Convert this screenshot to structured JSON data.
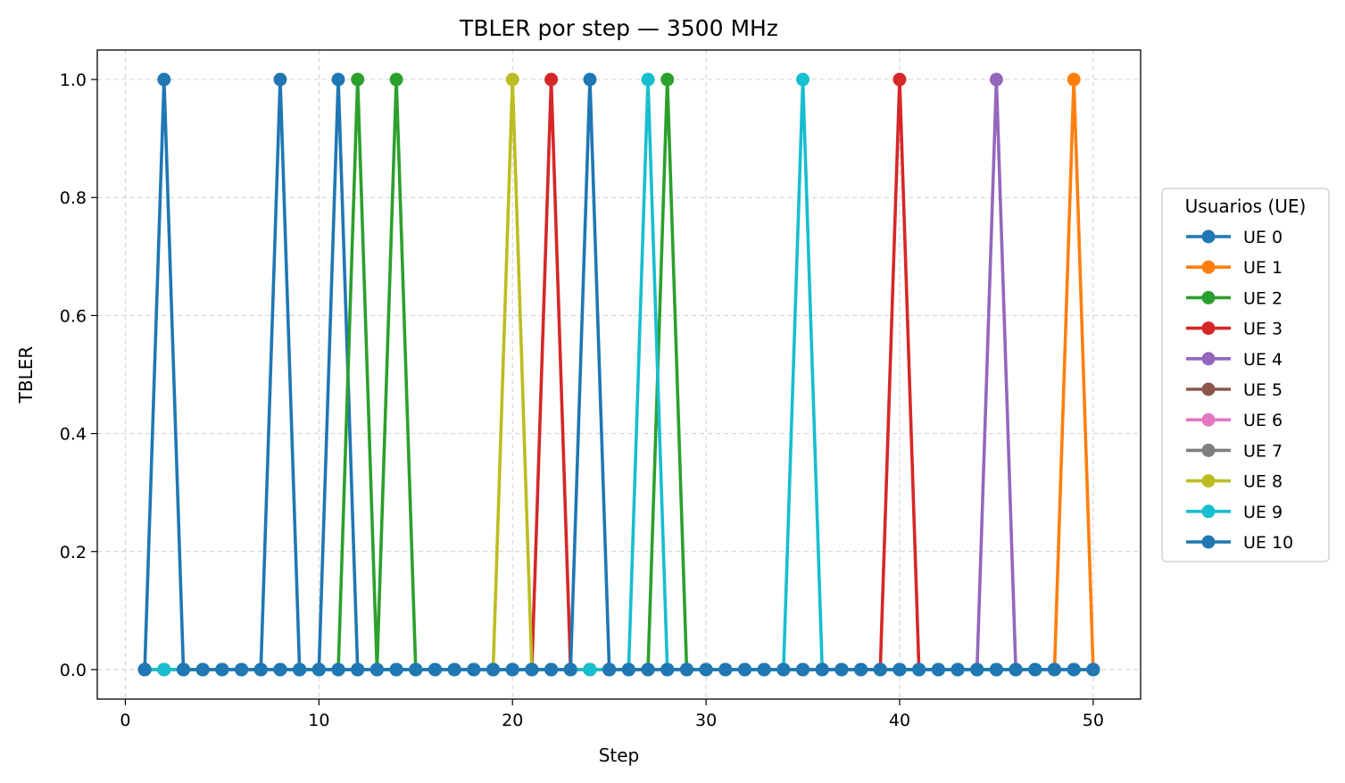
{
  "chart_data": {
    "type": "line",
    "title": "TBLER por step — 3500 MHz",
    "xlabel": "Step",
    "ylabel": "TBLER",
    "xlim": [
      -1.45,
      52.45
    ],
    "ylim": [
      -0.05,
      1.05
    ],
    "xticks": [
      0,
      10,
      20,
      30,
      40,
      50
    ],
    "yticks": [
      0.0,
      0.2,
      0.4,
      0.6,
      0.8,
      1.0
    ],
    "xtick_labels": [
      "0",
      "10",
      "20",
      "30",
      "40",
      "50"
    ],
    "ytick_labels": [
      "0.0",
      "0.2",
      "0.4",
      "0.6",
      "0.8",
      "1.0"
    ],
    "grid": true,
    "legend": {
      "title": "Usuarios (UE)",
      "placement": "outside-right"
    },
    "x": [
      1,
      2,
      3,
      4,
      5,
      6,
      7,
      8,
      9,
      10,
      11,
      12,
      13,
      14,
      15,
      16,
      17,
      18,
      19,
      20,
      21,
      22,
      23,
      24,
      25,
      26,
      27,
      28,
      29,
      30,
      31,
      32,
      33,
      34,
      35,
      36,
      37,
      38,
      39,
      40,
      41,
      42,
      43,
      44,
      45,
      46,
      47,
      48,
      49,
      50
    ],
    "series": [
      {
        "name": "UE 0",
        "color": "#1f77b4",
        "spikes": [
          8,
          11
        ]
      },
      {
        "name": "UE 1",
        "color": "#ff7f0e",
        "spikes": [
          49
        ]
      },
      {
        "name": "UE 2",
        "color": "#2ca02c",
        "spikes": [
          12,
          14,
          28
        ]
      },
      {
        "name": "UE 3",
        "color": "#d62728",
        "spikes": [
          22,
          40
        ]
      },
      {
        "name": "UE 4",
        "color": "#9467bd",
        "spikes": [
          45
        ]
      },
      {
        "name": "UE 5",
        "color": "#8c564b",
        "spikes": []
      },
      {
        "name": "UE 6",
        "color": "#e377c2",
        "spikes": []
      },
      {
        "name": "UE 7",
        "color": "#7f7f7f",
        "spikes": []
      },
      {
        "name": "UE 8",
        "color": "#bcbd22",
        "spikes": [
          20
        ]
      },
      {
        "name": "UE 9",
        "color": "#17becf",
        "spikes": [
          27,
          35
        ]
      },
      {
        "name": "UE 10",
        "color": "#1f77b4",
        "spikes": [
          2,
          24
        ]
      }
    ]
  }
}
